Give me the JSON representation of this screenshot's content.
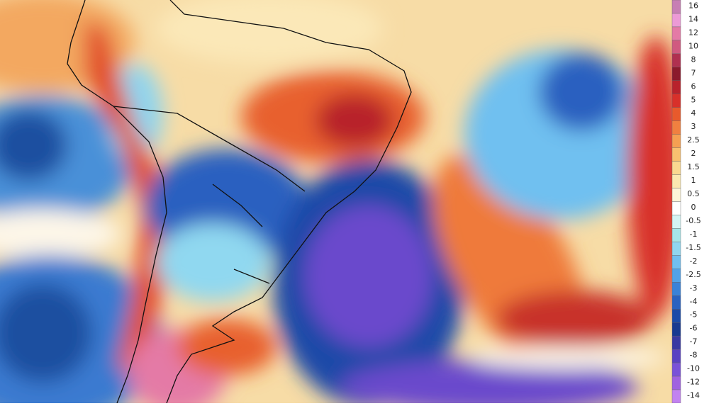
{
  "colorbar": {
    "entries": [
      {
        "value": 16,
        "color": "#c77fb4"
      },
      {
        "value": 14,
        "color": "#ec9ad6"
      },
      {
        "value": 12,
        "color": "#e47aa6"
      },
      {
        "value": 10,
        "color": "#d05a80"
      },
      {
        "value": 8,
        "color": "#b03050"
      },
      {
        "value": 7,
        "color": "#8b1a2c"
      },
      {
        "value": 6,
        "color": "#b8222c"
      },
      {
        "value": 5,
        "color": "#d8302a"
      },
      {
        "value": 4,
        "color": "#e85a2c"
      },
      {
        "value": 3,
        "color": "#f08040"
      },
      {
        "value": 2.5,
        "color": "#f5a052"
      },
      {
        "value": 2,
        "color": "#f8c070"
      },
      {
        "value": 1.5,
        "color": "#fad890"
      },
      {
        "value": 1,
        "color": "#fbe8b0"
      },
      {
        "value": 0.5,
        "color": "#fdf5d8"
      },
      {
        "value": 0,
        "color": "#ffffff"
      },
      {
        "value": -0.5,
        "color": "#d4f4f4"
      },
      {
        "value": -1,
        "color": "#a6e6e8"
      },
      {
        "value": -1.5,
        "color": "#90d6f0"
      },
      {
        "value": -2,
        "color": "#70bff0"
      },
      {
        "value": -2.5,
        "color": "#52a2e8"
      },
      {
        "value": -3,
        "color": "#3a82d8"
      },
      {
        "value": -4,
        "color": "#2a62c0"
      },
      {
        "value": -5,
        "color": "#1a4aa8"
      },
      {
        "value": -6,
        "color": "#183a90"
      },
      {
        "value": -7,
        "color": "#3a3aa2"
      },
      {
        "value": -8,
        "color": "#5a42c2"
      },
      {
        "value": -10,
        "color": "#7a52d8"
      },
      {
        "value": -12,
        "color": "#a062e0"
      },
      {
        "value": -14,
        "color": "#c282f0"
      }
    ]
  }
}
